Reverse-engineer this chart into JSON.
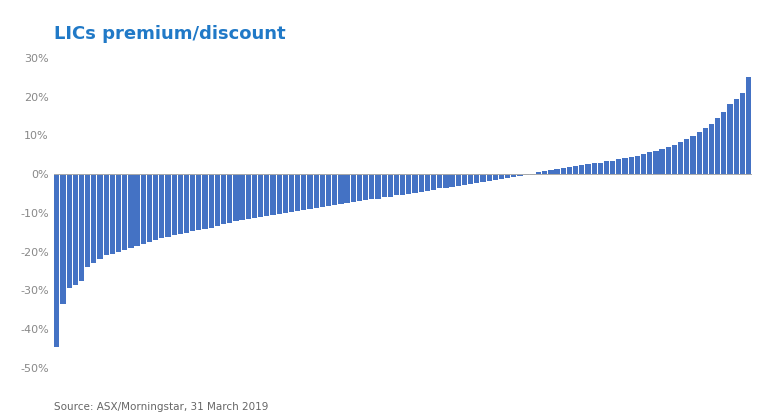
{
  "title": "LICs premium/discount",
  "title_color": "#2079C7",
  "source_text": "Source: ASX/Morningstar, 31 March 2019",
  "bar_color": "#4472C4",
  "background_color": "#FFFFFF",
  "ylim": [
    -0.5,
    0.32
  ],
  "yticks": [
    -0.5,
    -0.4,
    -0.3,
    -0.2,
    -0.1,
    0.0,
    0.1,
    0.2,
    0.3
  ],
  "values": [
    -0.445,
    -0.335,
    -0.295,
    -0.285,
    -0.275,
    -0.24,
    -0.23,
    -0.22,
    -0.21,
    -0.205,
    -0.2,
    -0.195,
    -0.19,
    -0.185,
    -0.18,
    -0.175,
    -0.17,
    -0.165,
    -0.162,
    -0.158,
    -0.155,
    -0.152,
    -0.148,
    -0.145,
    -0.142,
    -0.138,
    -0.135,
    -0.13,
    -0.125,
    -0.122,
    -0.118,
    -0.115,
    -0.112,
    -0.11,
    -0.108,
    -0.105,
    -0.102,
    -0.1,
    -0.098,
    -0.095,
    -0.093,
    -0.09,
    -0.088,
    -0.085,
    -0.082,
    -0.08,
    -0.078,
    -0.075,
    -0.073,
    -0.07,
    -0.068,
    -0.065,
    -0.063,
    -0.06,
    -0.058,
    -0.055,
    -0.053,
    -0.05,
    -0.048,
    -0.045,
    -0.043,
    -0.04,
    -0.037,
    -0.035,
    -0.032,
    -0.03,
    -0.028,
    -0.025,
    -0.023,
    -0.02,
    -0.018,
    -0.015,
    -0.012,
    -0.01,
    -0.007,
    -0.005,
    -0.003,
    -0.001,
    0.005,
    0.008,
    0.01,
    0.012,
    0.015,
    0.018,
    0.02,
    0.023,
    0.025,
    0.028,
    0.03,
    0.033,
    0.035,
    0.038,
    0.042,
    0.045,
    0.048,
    0.052,
    0.056,
    0.06,
    0.065,
    0.07,
    0.075,
    0.082,
    0.09,
    0.098,
    0.108,
    0.118,
    0.13,
    0.145,
    0.16,
    0.18,
    0.195,
    0.21,
    0.25
  ]
}
